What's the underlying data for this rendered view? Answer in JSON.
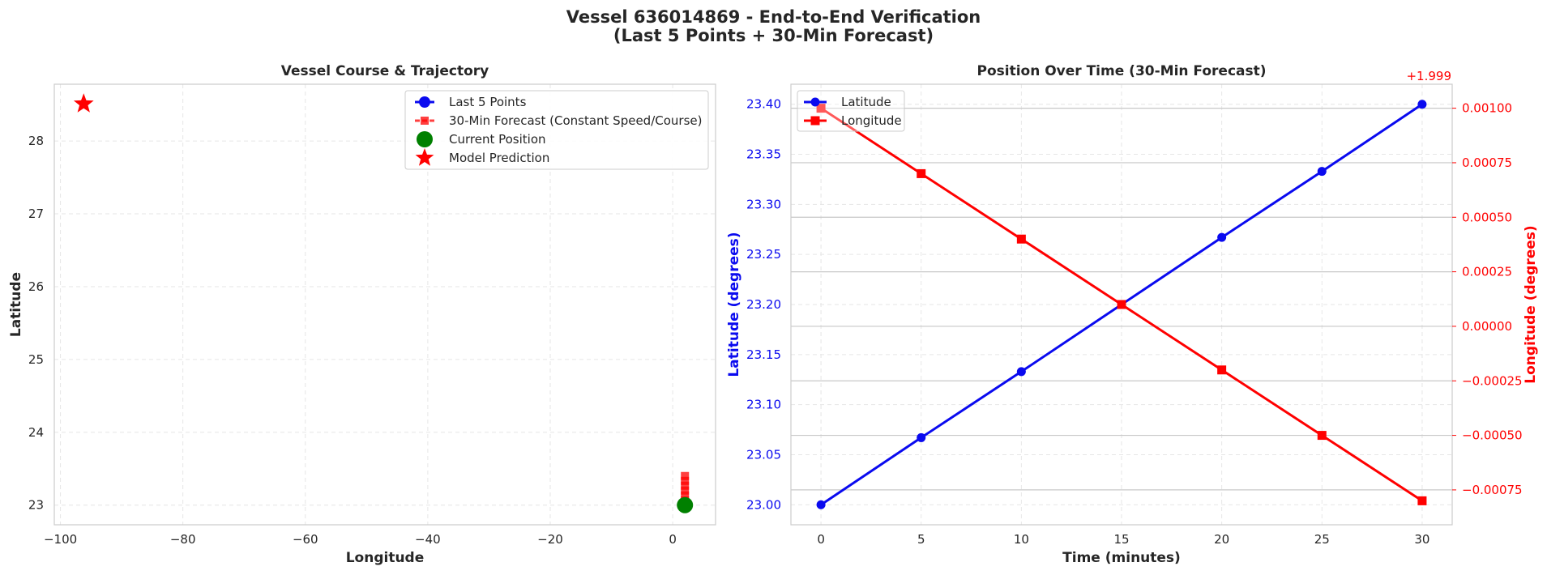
{
  "figure": {
    "title_line1": "Vessel 636014869 - End-to-End Verification",
    "title_line2": "(Last 5 Points + 30-Min Forecast)"
  },
  "colors": {
    "blue": "#0a0aef",
    "red": "#ff0000",
    "green": "#008000",
    "grid": "#e6e6e6",
    "spine": "#cccccc"
  },
  "chart_data": [
    {
      "type": "scatter",
      "title": "Vessel Course & Trajectory",
      "xlabel": "Longitude",
      "ylabel": "Latitude",
      "xlim": [
        -101,
        7
      ],
      "ylim": [
        22.73,
        28.78
      ],
      "xticks": [
        -100,
        -80,
        -60,
        -40,
        -20,
        0
      ],
      "xtick_labels": [
        "−100",
        "−80",
        "−60",
        "−40",
        "−20",
        "0"
      ],
      "yticks": [
        23,
        24,
        25,
        26,
        27,
        28
      ],
      "yticks_labels": [
        "23",
        "24",
        "25",
        "26",
        "27",
        "28"
      ],
      "grid": true,
      "legend_position": "top-right",
      "series": [
        {
          "name": "Last 5 Points",
          "marker": "circle",
          "color": "#0a0aef",
          "x": [],
          "y": []
        },
        {
          "name": "30-Min Forecast (Constant Speed/Course)",
          "marker": "square",
          "color": "#ff0000",
          "x": [
            2.0,
            2.0,
            2.0,
            2.0,
            2.0,
            2.0,
            2.0
          ],
          "y": [
            23.0,
            23.067,
            23.133,
            23.2,
            23.267,
            23.333,
            23.4
          ]
        },
        {
          "name": "Current Position",
          "marker": "circle",
          "color": "#008000",
          "x": [
            2.0
          ],
          "y": [
            23.0
          ]
        },
        {
          "name": "Model Prediction",
          "marker": "star",
          "color": "#ff0000",
          "x": [
            -96.2
          ],
          "y": [
            28.51
          ]
        }
      ]
    },
    {
      "type": "line",
      "title": "Position Over Time (30-Min Forecast)",
      "xlabel": "Time (minutes)",
      "ylabel": "Latitude (degrees)",
      "y2label": "Longitude (degrees)",
      "y2_offset_label": "+1.999",
      "xlim": [
        -1.5,
        31.5
      ],
      "xticks": [
        0,
        5,
        10,
        15,
        20,
        25,
        30
      ],
      "ylim": [
        22.98,
        23.42
      ],
      "yticks": [
        23.0,
        23.05,
        23.1,
        23.15,
        23.2,
        23.25,
        23.3,
        23.35,
        23.4
      ],
      "yticks_labels": [
        "23.00",
        "23.05",
        "23.10",
        "23.15",
        "23.20",
        "23.25",
        "23.30",
        "23.35",
        "23.40"
      ],
      "y2lim": [
        -0.00091,
        0.00111
      ],
      "y2ticks": [
        -0.00075,
        -0.0005,
        -0.00025,
        0.0,
        0.00025,
        0.0005,
        0.00075,
        0.001
      ],
      "y2ticks_labels": [
        "−0.00075",
        "−0.00050",
        "−0.00025",
        "0.00000",
        "0.00025",
        "0.00050",
        "0.00075",
        "0.00100"
      ],
      "grid": true,
      "legend_position": "top-left",
      "x": [
        0,
        5,
        10,
        15,
        20,
        25,
        30
      ],
      "series": [
        {
          "name": "Latitude",
          "axis": "left",
          "marker": "circle",
          "color": "#0a0aef",
          "values": [
            23.0,
            23.067,
            23.133,
            23.2,
            23.267,
            23.333,
            23.4
          ]
        },
        {
          "name": "Longitude",
          "axis": "right",
          "marker": "square",
          "color": "#ff0000",
          "values": [
            0.001,
            0.0007,
            0.0004,
            0.0001,
            -0.0002,
            -0.0005,
            -0.0008
          ]
        }
      ]
    }
  ]
}
